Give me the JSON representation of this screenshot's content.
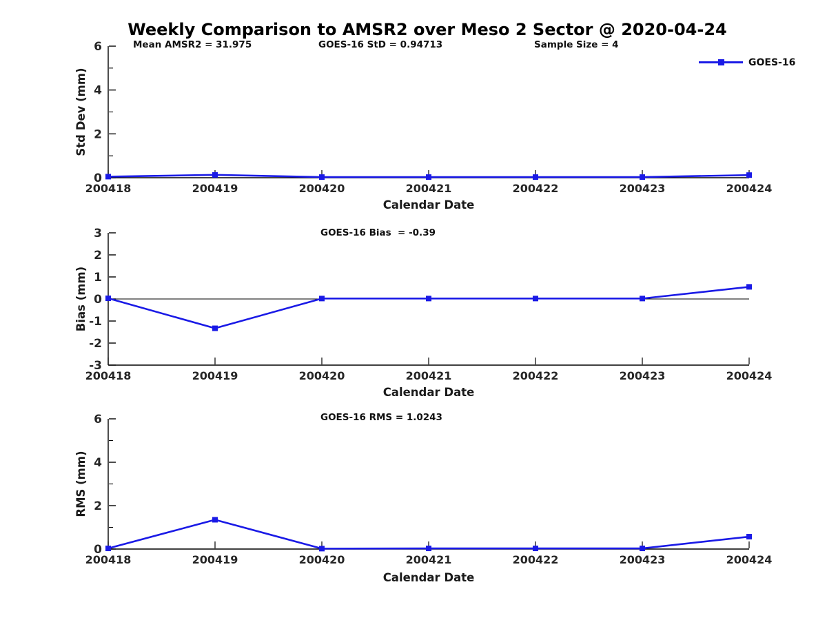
{
  "figure": {
    "title": "Weekly Comparison to AMSR2 over Meso 2 Sector @ 2020-04-24",
    "stats": {
      "mean_amsr2": "Mean AMSR2 = 31.975",
      "goes16_std": "GOES-16 StD = 0.94713",
      "sample_size": "Sample Size = 4"
    },
    "legend": {
      "label": "GOES-16",
      "marker": "filled-square"
    },
    "colors": {
      "series": "#1a1ae6",
      "axis": "#000000",
      "tick_label": "#262626",
      "annotation_text": "#111111"
    }
  },
  "chart_data": [
    {
      "type": "line",
      "ylabel": "Std Dev (mm)",
      "xlabel": "Calendar Date",
      "annotation": "",
      "categories": [
        "200418",
        "200419",
        "200420",
        "200421",
        "200422",
        "200423",
        "200424"
      ],
      "series": [
        {
          "name": "GOES-16",
          "values": [
            0.05,
            0.13,
            0.03,
            0.03,
            0.03,
            0.03,
            0.12
          ]
        }
      ],
      "ylim": [
        0,
        6
      ],
      "yticks": [
        0,
        2,
        4,
        6
      ],
      "yticks_minor": [
        1,
        3,
        5
      ],
      "zero_line": false,
      "grid": false,
      "legend_position": "top-right-outside"
    },
    {
      "type": "line",
      "ylabel": "Bias (mm)",
      "xlabel": "Calendar Date",
      "annotation": "GOES-16 Bias  = -0.39",
      "categories": [
        "200418",
        "200419",
        "200420",
        "200421",
        "200422",
        "200423",
        "200424"
      ],
      "series": [
        {
          "name": "GOES-16",
          "values": [
            0.03,
            -1.33,
            0.02,
            0.02,
            0.02,
            0.02,
            0.55
          ]
        }
      ],
      "ylim": [
        -3,
        3
      ],
      "yticks": [
        -3,
        -2,
        -1,
        0,
        1,
        2,
        3
      ],
      "yticks_minor": [],
      "zero_line": true,
      "grid": false,
      "legend_position": "none"
    },
    {
      "type": "line",
      "ylabel": "RMS (mm)",
      "xlabel": "Calendar Date",
      "annotation": "GOES-16 RMS = 1.0243",
      "categories": [
        "200418",
        "200419",
        "200420",
        "200421",
        "200422",
        "200423",
        "200424"
      ],
      "series": [
        {
          "name": "GOES-16",
          "values": [
            0.03,
            1.35,
            0.02,
            0.03,
            0.03,
            0.03,
            0.57
          ]
        }
      ],
      "ylim": [
        0,
        6
      ],
      "yticks": [
        0,
        2,
        4,
        6
      ],
      "yticks_minor": [
        1,
        3,
        5
      ],
      "zero_line": false,
      "grid": false,
      "legend_position": "none"
    }
  ]
}
